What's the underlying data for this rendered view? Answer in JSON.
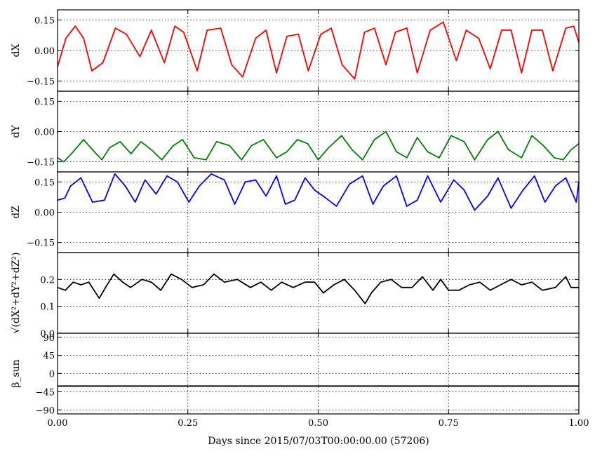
{
  "chart_data": {
    "type": "line",
    "xlabel": "Days since 2015/07/03T00:00:00.00 (57206)",
    "xlim": [
      0,
      1
    ],
    "xticks": [
      "0.00",
      "0.25",
      "0.50",
      "0.75",
      "1.00"
    ],
    "xtick_values": [
      0,
      0.25,
      0.5,
      0.75,
      1.0
    ],
    "grid": true,
    "panels": [
      {
        "ylabel": "dX",
        "color": "#ff0000",
        "ylim": [
          -0.2,
          0.2
        ],
        "yticks": [
          "0.15",
          "0.00",
          "−0.15"
        ],
        "ytick_values": [
          0.15,
          0.0,
          -0.15
        ],
        "series": [
          {
            "x": [
              0.0,
              0.016,
              0.034,
              0.05,
              0.066,
              0.087,
              0.111,
              0.132,
              0.158,
              0.18,
              0.205,
              0.225,
              0.242,
              0.268,
              0.287,
              0.313,
              0.334,
              0.355,
              0.38,
              0.4,
              0.42,
              0.44,
              0.462,
              0.481,
              0.505,
              0.525,
              0.546,
              0.57,
              0.589,
              0.608,
              0.63,
              0.648,
              0.67,
              0.69,
              0.715,
              0.74,
              0.765,
              0.784,
              0.808,
              0.83,
              0.852,
              0.87,
              0.89,
              0.91,
              0.93,
              0.95,
              0.975,
              0.99,
              1.0
            ],
            "values": [
              -0.08,
              0.06,
              0.12,
              0.06,
              -0.1,
              -0.06,
              0.11,
              0.08,
              -0.03,
              0.1,
              -0.06,
              0.12,
              0.09,
              -0.1,
              0.1,
              0.11,
              -0.07,
              -0.13,
              0.06,
              0.1,
              -0.11,
              0.07,
              0.08,
              -0.1,
              0.08,
              0.11,
              -0.07,
              -0.14,
              0.09,
              0.11,
              -0.07,
              0.09,
              0.11,
              -0.11,
              0.1,
              0.14,
              -0.05,
              0.1,
              0.06,
              -0.09,
              0.1,
              0.1,
              -0.11,
              0.1,
              0.1,
              -0.1,
              0.11,
              0.12,
              0.04
            ]
          }
        ]
      },
      {
        "ylabel": "dY",
        "color": "#008000",
        "ylim": [
          -0.2,
          0.2
        ],
        "yticks": [
          "0.15",
          "0.00",
          "−0.15"
        ],
        "ytick_values": [
          0.15,
          0.0,
          -0.15
        ],
        "series": [
          {
            "x": [
              0.0,
              0.012,
              0.03,
              0.05,
              0.067,
              0.085,
              0.1,
              0.12,
              0.141,
              0.16,
              0.18,
              0.2,
              0.222,
              0.24,
              0.262,
              0.285,
              0.305,
              0.33,
              0.353,
              0.372,
              0.395,
              0.42,
              0.44,
              0.46,
              0.48,
              0.5,
              0.52,
              0.545,
              0.565,
              0.585,
              0.608,
              0.63,
              0.65,
              0.67,
              0.69,
              0.71,
              0.732,
              0.755,
              0.78,
              0.8,
              0.825,
              0.845,
              0.865,
              0.89,
              0.91,
              0.932,
              0.953,
              0.97,
              0.985,
              1.0
            ],
            "values": [
              -0.13,
              -0.15,
              -0.1,
              -0.04,
              -0.09,
              -0.14,
              -0.08,
              -0.05,
              -0.11,
              -0.05,
              -0.09,
              -0.14,
              -0.07,
              -0.04,
              -0.13,
              -0.14,
              -0.05,
              -0.07,
              -0.14,
              -0.07,
              -0.04,
              -0.13,
              -0.1,
              -0.04,
              -0.06,
              -0.14,
              -0.08,
              -0.02,
              -0.09,
              -0.14,
              -0.04,
              0.0,
              -0.1,
              -0.13,
              -0.03,
              -0.1,
              -0.13,
              -0.02,
              -0.05,
              -0.14,
              -0.04,
              0.0,
              -0.09,
              -0.13,
              -0.02,
              -0.07,
              -0.13,
              -0.14,
              -0.09,
              -0.06
            ]
          }
        ]
      },
      {
        "ylabel": "dZ",
        "color": "#0000ff",
        "ylim": [
          -0.2,
          0.2
        ],
        "yticks": [
          "0.15",
          "0.00",
          "−0.15"
        ],
        "ytick_values": [
          0.15,
          0.0,
          -0.15
        ],
        "series": [
          {
            "x": [
              0.0,
              0.014,
              0.025,
              0.045,
              0.067,
              0.09,
              0.11,
              0.13,
              0.149,
              0.168,
              0.189,
              0.21,
              0.23,
              0.252,
              0.272,
              0.295,
              0.32,
              0.34,
              0.36,
              0.38,
              0.4,
              0.42,
              0.437,
              0.455,
              0.475,
              0.493,
              0.515,
              0.535,
              0.56,
              0.585,
              0.605,
              0.625,
              0.65,
              0.67,
              0.69,
              0.71,
              0.735,
              0.76,
              0.78,
              0.8,
              0.825,
              0.845,
              0.87,
              0.893,
              0.915,
              0.935,
              0.955,
              0.975,
              0.995,
              1.0
            ],
            "values": [
              0.06,
              0.07,
              0.13,
              0.17,
              0.05,
              0.06,
              0.19,
              0.13,
              0.05,
              0.16,
              0.09,
              0.18,
              0.15,
              0.05,
              0.13,
              0.19,
              0.16,
              0.04,
              0.15,
              0.16,
              0.08,
              0.18,
              0.04,
              0.06,
              0.17,
              0.11,
              0.07,
              0.03,
              0.14,
              0.18,
              0.04,
              0.13,
              0.18,
              0.03,
              0.06,
              0.18,
              0.05,
              0.16,
              0.11,
              0.01,
              0.08,
              0.17,
              0.02,
              0.11,
              0.18,
              0.05,
              0.13,
              0.17,
              0.05,
              0.15
            ]
          }
        ]
      },
      {
        "ylabel": "√(dX²+dY²+dZ²)",
        "color": "#000000",
        "ylim": [
          0,
          0.3
        ],
        "yticks": [
          "0.2",
          "0.1",
          "0.0"
        ],
        "ytick_values": [
          0.2,
          0.1,
          0.0
        ],
        "series": [
          {
            "x": [
              0.0,
              0.015,
              0.03,
              0.045,
              0.06,
              0.08,
              0.092,
              0.108,
              0.125,
              0.14,
              0.162,
              0.18,
              0.198,
              0.218,
              0.238,
              0.258,
              0.28,
              0.3,
              0.32,
              0.345,
              0.37,
              0.39,
              0.41,
              0.43,
              0.452,
              0.475,
              0.493,
              0.51,
              0.53,
              0.55,
              0.57,
              0.59,
              0.602,
              0.62,
              0.64,
              0.66,
              0.68,
              0.7,
              0.72,
              0.735,
              0.75,
              0.77,
              0.79,
              0.81,
              0.83,
              0.85,
              0.87,
              0.89,
              0.91,
              0.93,
              0.955,
              0.975,
              0.985,
              1.0
            ],
            "values": [
              0.17,
              0.16,
              0.19,
              0.18,
              0.19,
              0.13,
              0.17,
              0.22,
              0.19,
              0.17,
              0.2,
              0.19,
              0.16,
              0.22,
              0.2,
              0.17,
              0.18,
              0.22,
              0.19,
              0.2,
              0.17,
              0.19,
              0.16,
              0.19,
              0.17,
              0.19,
              0.19,
              0.15,
              0.18,
              0.2,
              0.16,
              0.11,
              0.15,
              0.19,
              0.2,
              0.17,
              0.17,
              0.21,
              0.16,
              0.2,
              0.16,
              0.16,
              0.18,
              0.19,
              0.16,
              0.18,
              0.2,
              0.18,
              0.19,
              0.16,
              0.17,
              0.21,
              0.17,
              0.17
            ]
          }
        ]
      },
      {
        "ylabel": "β_sun",
        "color": "#000000",
        "ylim": [
          -100,
          100
        ],
        "yticks": [
          "90",
          "45",
          "0",
          "−45",
          "−90"
        ],
        "ytick_values": [
          90,
          45,
          0,
          -45,
          -90
        ],
        "series": [
          {
            "x": [
              0.0,
              1.0
            ],
            "values": [
              -31,
              -31
            ]
          }
        ]
      }
    ]
  }
}
